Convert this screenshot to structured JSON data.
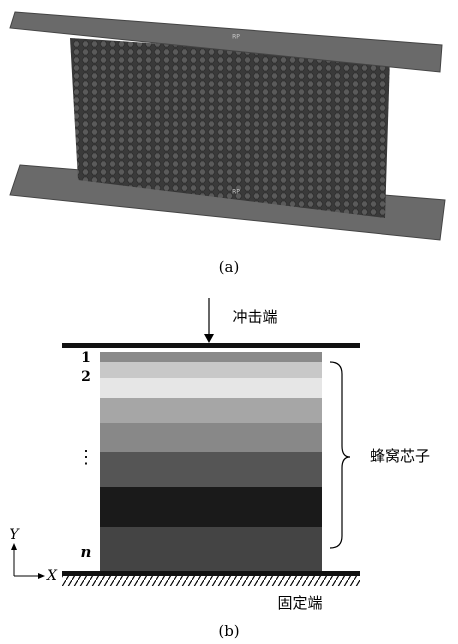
{
  "panel_a": {
    "label": "(a)",
    "reference_points": [
      "RP",
      "RP"
    ]
  },
  "panel_b": {
    "label": "(b)",
    "impact_end": "冲击端",
    "fixed_end": "固定端",
    "core": "蜂窝芯子",
    "layer_labels": [
      "1",
      "2",
      "⋮",
      "n"
    ],
    "axes": {
      "y": "Y",
      "x": "X"
    }
  }
}
